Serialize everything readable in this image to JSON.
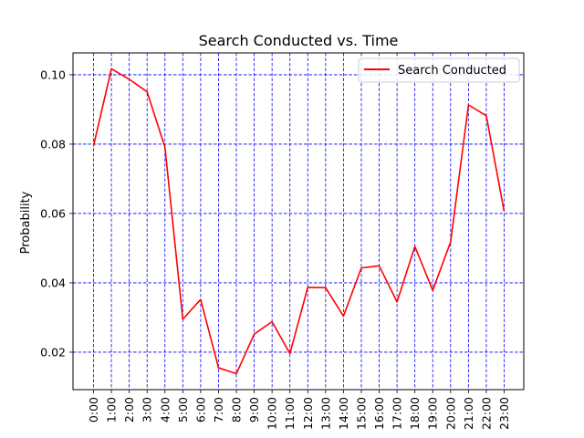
{
  "chart_data": {
    "type": "line",
    "title": "Search Conducted vs. Time",
    "xlabel": "",
    "ylabel": "Probability",
    "categories": [
      "0:00",
      "1:00",
      "2:00",
      "3:00",
      "4:00",
      "5:00",
      "6:00",
      "7:00",
      "8:00",
      "9:00",
      "10:00",
      "11:00",
      "12:00",
      "13:00",
      "14:00",
      "15:00",
      "16:00",
      "17:00",
      "18:00",
      "19:00",
      "20:00",
      "21:00",
      "22:00",
      "23:00"
    ],
    "series": [
      {
        "name": "Search Conducted",
        "color": "#ff0000",
        "values": [
          0.0795,
          0.1017,
          0.0987,
          0.0951,
          0.0791,
          0.0295,
          0.0352,
          0.0155,
          0.0138,
          0.0252,
          0.0288,
          0.0196,
          0.0387,
          0.0386,
          0.0304,
          0.0443,
          0.0449,
          0.0345,
          0.0505,
          0.0378,
          0.0518,
          0.0913,
          0.0882,
          0.0606
        ]
      }
    ],
    "ylim": [
      0.0092,
      0.1063
    ],
    "yticks": [
      0.02,
      0.04,
      0.06,
      0.08,
      0.1
    ],
    "ytick_labels": [
      "0.02",
      "0.04",
      "0.06",
      "0.08",
      "0.10"
    ],
    "grid": true,
    "grid_color": "#0000ff",
    "legend": "top-right"
  }
}
